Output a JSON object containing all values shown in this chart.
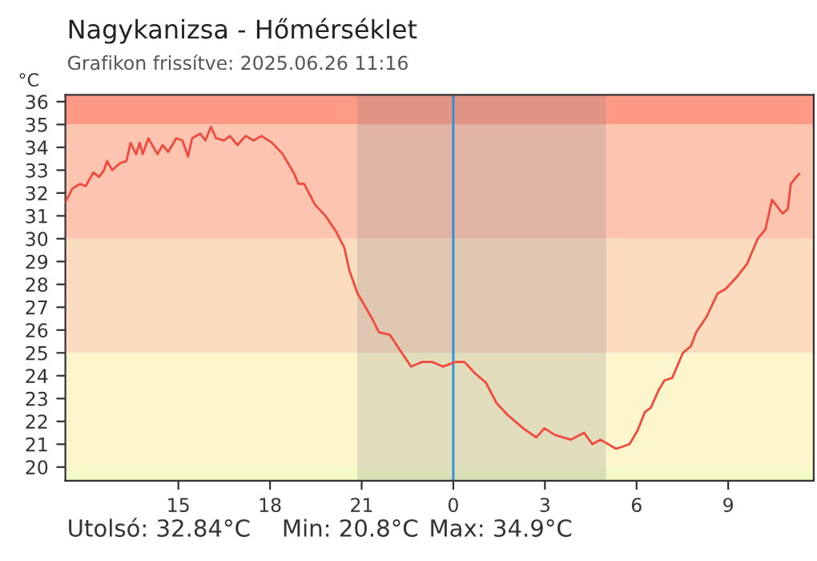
{
  "chart_data": {
    "type": "line",
    "title": "Nagykanizsa - Hőmérséklet",
    "subtitle": "Grafikon frissítve: 2025.06.26 11:16",
    "ylabel": "°C",
    "annotations": [
      "Utolsó: 32.84°C",
      "Min: 20.8°C",
      "Max: 34.9°C"
    ],
    "series": [
      {
        "color": "#f04a3e",
        "x": [
          "2025-06-25T11:18",
          "2025-06-25T11:32",
          "2025-06-25T11:47",
          "2025-06-25T11:58",
          "2025-06-25T12:13",
          "2025-06-25T12:24",
          "2025-06-25T12:34",
          "2025-06-25T12:40",
          "2025-06-25T12:50",
          "2025-06-25T13:05",
          "2025-06-25T13:18",
          "2025-06-25T13:26",
          "2025-06-25T13:37",
          "2025-06-25T13:44",
          "2025-06-25T13:50",
          "2025-06-25T14:01",
          "2025-06-25T14:19",
          "2025-06-25T14:29",
          "2025-06-25T14:40",
          "2025-06-25T14:56",
          "2025-06-25T15:08",
          "2025-06-25T15:19",
          "2025-06-25T15:27",
          "2025-06-25T15:43",
          "2025-06-25T15:53",
          "2025-06-25T16:04",
          "2025-06-25T16:14",
          "2025-06-25T16:30",
          "2025-06-25T16:41",
          "2025-06-25T16:56",
          "2025-06-25T17:12",
          "2025-06-25T17:28",
          "2025-06-25T17:43",
          "2025-06-25T18:04",
          "2025-06-25T18:25",
          "2025-06-25T18:46",
          "2025-06-25T18:56",
          "2025-06-25T19:07",
          "2025-06-25T19:28",
          "2025-06-25T19:49",
          "2025-06-25T20:10",
          "2025-06-25T20:26",
          "2025-06-25T20:36",
          "2025-06-25T20:52",
          "2025-06-25T21:18",
          "2025-06-25T21:34",
          "2025-06-25T21:55",
          "2025-06-25T22:16",
          "2025-06-25T22:37",
          "2025-06-25T22:58",
          "2025-06-25T23:19",
          "2025-06-25T23:40",
          "2025-06-26T00:04",
          "2025-06-26T00:22",
          "2025-06-26T00:43",
          "2025-06-26T01:04",
          "2025-06-26T01:25",
          "2025-06-26T01:46",
          "2025-06-26T02:17",
          "2025-06-26T02:43",
          "2025-06-26T02:59",
          "2025-06-26T03:20",
          "2025-06-26T03:51",
          "2025-06-26T04:17",
          "2025-06-26T04:33",
          "2025-06-26T04:49",
          "2025-06-26T05:20",
          "2025-06-26T05:46",
          "2025-06-26T06:02",
          "2025-06-26T06:16",
          "2025-06-26T06:28",
          "2025-06-26T06:44",
          "2025-06-26T06:55",
          "2025-06-26T07:10",
          "2025-06-26T07:31",
          "2025-06-26T07:47",
          "2025-06-26T07:57",
          "2025-06-26T08:18",
          "2025-06-26T08:39",
          "2025-06-26T08:55",
          "2025-06-26T09:16",
          "2025-06-26T09:37",
          "2025-06-26T09:58",
          "2025-06-26T10:13",
          "2025-06-26T10:26",
          "2025-06-26T10:47",
          "2025-06-26T10:57",
          "2025-06-26T11:03",
          "2025-06-26T11:19"
        ],
        "values": [
          31.6,
          32.2,
          32.4,
          32.3,
          32.9,
          32.7,
          33.0,
          33.4,
          33.0,
          33.3,
          33.4,
          34.2,
          33.7,
          34.2,
          33.7,
          34.4,
          33.7,
          34.1,
          33.8,
          34.4,
          34.3,
          33.6,
          34.4,
          34.6,
          34.3,
          34.9,
          34.4,
          34.3,
          34.5,
          34.1,
          34.5,
          34.3,
          34.5,
          34.2,
          33.7,
          32.9,
          32.4,
          32.4,
          31.5,
          31.0,
          30.3,
          29.6,
          28.6,
          27.6,
          26.6,
          25.9,
          25.8,
          25.1,
          24.4,
          24.6,
          24.6,
          24.4,
          24.6,
          24.6,
          24.1,
          23.7,
          22.8,
          22.3,
          21.7,
          21.3,
          21.7,
          21.4,
          21.2,
          21.5,
          21.0,
          21.2,
          20.8,
          21.0,
          21.6,
          22.4,
          22.6,
          23.4,
          23.8,
          23.9,
          25.0,
          25.3,
          25.9,
          26.6,
          27.6,
          27.8,
          28.3,
          28.9,
          30.0,
          30.4,
          31.7,
          31.1,
          31.3,
          32.4,
          32.84
        ]
      }
    ],
    "xlim": [
      "2025-06-25T11:18",
      "2025-06-26T11:48"
    ],
    "xticks": [
      {
        "value": "2025-06-25T15:00",
        "label": "15"
      },
      {
        "value": "2025-06-25T18:00",
        "label": "18"
      },
      {
        "value": "2025-06-25T21:00",
        "label": "21"
      },
      {
        "value": "2025-06-26T00:00",
        "label": "0"
      },
      {
        "value": "2025-06-26T03:00",
        "label": "3"
      },
      {
        "value": "2025-06-26T06:00",
        "label": "6"
      },
      {
        "value": "2025-06-26T09:00",
        "label": "9"
      }
    ],
    "ylim": [
      19.4,
      36.3
    ],
    "yticks": [
      20,
      21,
      22,
      23,
      24,
      25,
      26,
      27,
      28,
      29,
      30,
      31,
      32,
      33,
      34,
      35,
      36
    ],
    "bands": [
      {
        "axis": "y",
        "from": 19.4,
        "to": 20,
        "color": "#f5fac6"
      },
      {
        "axis": "y",
        "from": 20,
        "to": 25,
        "color": "#fdf6cc"
      },
      {
        "axis": "y",
        "from": 25,
        "to": 30,
        "color": "#fbdcbf"
      },
      {
        "axis": "y",
        "from": 30,
        "to": 35,
        "color": "#fdc5b0"
      },
      {
        "axis": "y",
        "from": 35,
        "to": 36.3,
        "color": "#fe9a86"
      },
      {
        "axis": "x",
        "from": "2025-06-25T20:51",
        "to": "2025-06-26T05:00",
        "color": "#808080"
      }
    ],
    "ref_lines": [
      {
        "axis": "x",
        "value": "2025-06-26T00:00",
        "color": "#2a8ee0"
      }
    ],
    "grid": false,
    "marker": "none",
    "line_style": "solid"
  }
}
